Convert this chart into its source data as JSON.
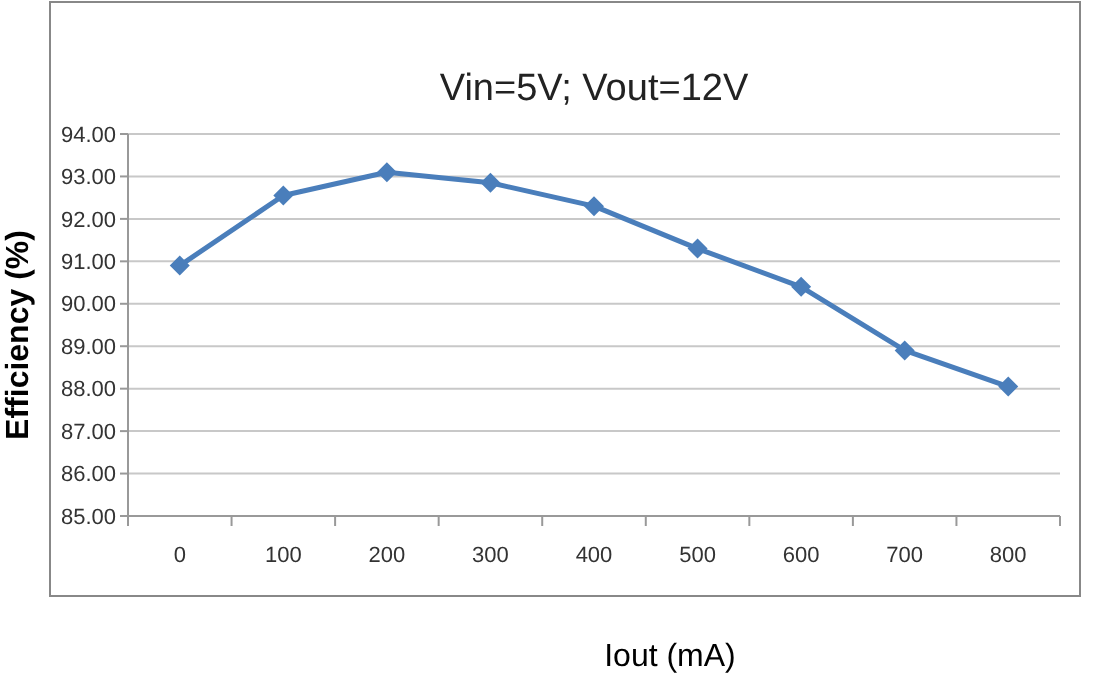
{
  "chart_data": {
    "type": "line",
    "title": "Vin=5V; Vout=12V",
    "xlabel": "Iout (mA)",
    "ylabel": "Efficiency (%)",
    "categories": [
      "0",
      "100",
      "200",
      "300",
      "400",
      "500",
      "600",
      "700",
      "800"
    ],
    "series": [
      {
        "color": "#4a7ebb",
        "values": [
          90.9,
          92.55,
          93.1,
          92.85,
          92.3,
          91.3,
          90.4,
          88.9,
          88.05
        ]
      }
    ],
    "ylim": [
      85,
      94
    ],
    "yticks": [
      {
        "value": 85,
        "label": "85.00"
      },
      {
        "value": 86,
        "label": "86.00"
      },
      {
        "value": 87,
        "label": "87.00"
      },
      {
        "value": 88,
        "label": "88.00"
      },
      {
        "value": 89,
        "label": "89.00"
      },
      {
        "value": 90,
        "label": "90.00"
      },
      {
        "value": 91,
        "label": "91.00"
      },
      {
        "value": 92,
        "label": "92.00"
      },
      {
        "value": 93,
        "label": "93.00"
      },
      {
        "value": 94,
        "label": "94.00"
      }
    ],
    "grid": "y",
    "marker": "diamond",
    "line_style": "solid"
  }
}
